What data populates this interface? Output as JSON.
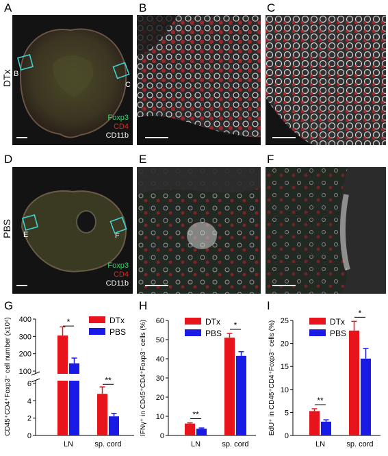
{
  "panels": {
    "A": "A",
    "B": "B",
    "C": "C",
    "D": "D",
    "E": "E",
    "F": "F",
    "G": "G",
    "H": "H",
    "I": "I"
  },
  "rows": {
    "top": "DTx",
    "bottom": "PBS"
  },
  "insets": {
    "left": "B",
    "right": "C",
    "left2": "E",
    "right2": "F"
  },
  "stains": {
    "foxp3": "Foxp3",
    "cd4": "CD4",
    "cd11b": "CD11b"
  },
  "colors": {
    "dtx": "#e8141b",
    "pbs": "#1a1ae6",
    "foxp3": "#32d96a",
    "cd4": "#e8261e",
    "cd11b": "#ffffff",
    "inset": "#3fd2d2"
  },
  "chart_data": [
    {
      "type": "bar",
      "panel": "G",
      "ylabel": "CD45⁺CD4⁺Foxp3⁻ cell number (x10⁴)",
      "categories": [
        "LN",
        "sp. cord"
      ],
      "broken_axis": true,
      "upper_ylim": [
        100,
        400
      ],
      "upper_ticks": [
        100,
        200,
        300,
        400
      ],
      "lower_ylim": [
        0,
        6
      ],
      "lower_ticks": [
        0,
        2,
        4,
        6
      ],
      "series": [
        {
          "name": "DTx",
          "values": [
            305,
            4.8
          ],
          "errors": [
            50,
            0.8
          ]
        },
        {
          "name": "PBS",
          "values": [
            145,
            2.2
          ],
          "errors": [
            30,
            0.35
          ]
        }
      ],
      "significance": [
        "*",
        "**"
      ]
    },
    {
      "type": "bar",
      "panel": "H",
      "ylabel": "IFNγ⁺ in CD45⁺CD4⁺Foxp3⁻ cells (%)",
      "categories": [
        "LN",
        "sp. cord"
      ],
      "ylim": [
        0,
        60
      ],
      "ticks": [
        0,
        10,
        20,
        30,
        40,
        50,
        60
      ],
      "series": [
        {
          "name": "DTx",
          "values": [
            6.2,
            51
          ],
          "errors": [
            0.4,
            2.2
          ]
        },
        {
          "name": "PBS",
          "values": [
            3.5,
            41.5
          ],
          "errors": [
            0.4,
            2.2
          ]
        }
      ],
      "significance": [
        "**",
        "*"
      ]
    },
    {
      "type": "bar",
      "panel": "I",
      "ylabel": "EdU⁺ in CD45⁺CD4⁺Foxp3⁻ cells (%)",
      "categories": [
        "LN",
        "sp. cord"
      ],
      "ylim": [
        0,
        25
      ],
      "ticks": [
        0,
        5,
        10,
        15,
        20,
        25
      ],
      "series": [
        {
          "name": "DTx",
          "values": [
            5.3,
            22.8
          ],
          "errors": [
            0.5,
            2.0
          ]
        },
        {
          "name": "PBS",
          "values": [
            3.0,
            16.7
          ],
          "errors": [
            0.4,
            2.2
          ]
        }
      ],
      "significance": [
        "**",
        "*"
      ]
    }
  ]
}
